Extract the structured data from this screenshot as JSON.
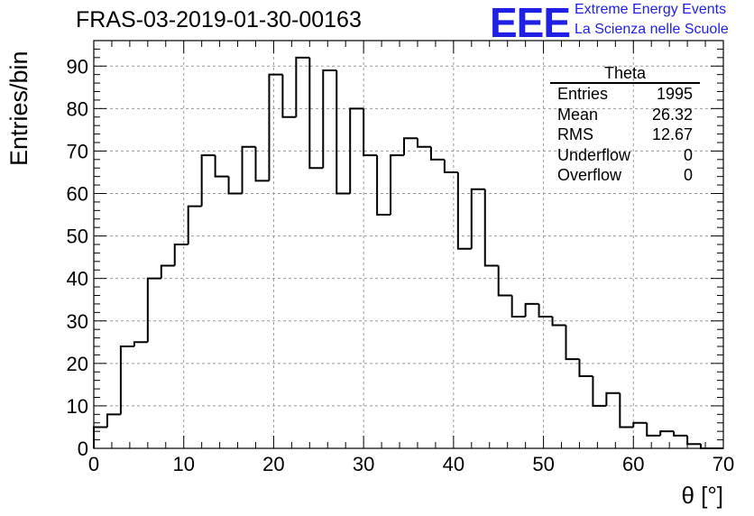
{
  "chart_data": {
    "type": "histogram",
    "title": "FRAS-03-2019-01-30-00163",
    "xlabel": "θ [°]",
    "ylabel": "Entries/bin",
    "xlim": [
      0,
      70
    ],
    "ylim": [
      0,
      96
    ],
    "grid": true,
    "bin_width": 1.5,
    "x_ticks": [
      "0",
      "10",
      "20",
      "30",
      "40",
      "50",
      "60",
      "70"
    ],
    "y_ticks": [
      "0",
      "10",
      "20",
      "30",
      "40",
      "50",
      "60",
      "70",
      "80",
      "90"
    ],
    "values": [
      5,
      8,
      24,
      25,
      40,
      43,
      48,
      57,
      69,
      64,
      60,
      71,
      63,
      88,
      78,
      92,
      66,
      89,
      60,
      80,
      69,
      55,
      69,
      73,
      71,
      68,
      65,
      47,
      61,
      43,
      36,
      31,
      34,
      31,
      29,
      21,
      17,
      10,
      13,
      5,
      6,
      3,
      4,
      3,
      1,
      0,
      0
    ]
  },
  "stats_box": {
    "title": "Theta",
    "rows": [
      {
        "label": "Entries",
        "value": "1995"
      },
      {
        "label": "Mean",
        "value": "26.32"
      },
      {
        "label": "RMS",
        "value": "12.67"
      },
      {
        "label": "Underflow",
        "value": "0"
      },
      {
        "label": "Overflow",
        "value": "0"
      }
    ]
  },
  "logo": {
    "mark": "EEE",
    "line1": "Extreme Energy Events",
    "line2": "La Scienza nelle Scuole",
    "color": "#1f1fe6"
  }
}
